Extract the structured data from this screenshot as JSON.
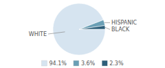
{
  "chart_data": {
    "type": "pie",
    "categories": [
      "WHITE",
      "HISPANIC",
      "BLACK"
    ],
    "values": [
      94.1,
      3.6,
      2.3
    ],
    "value_labels": [
      "94.1%",
      "3.6%",
      "2.3%"
    ],
    "colors": [
      "#d6e4f0",
      "#6a9fb5",
      "#2e5f7a"
    ],
    "legend": "bottom"
  }
}
